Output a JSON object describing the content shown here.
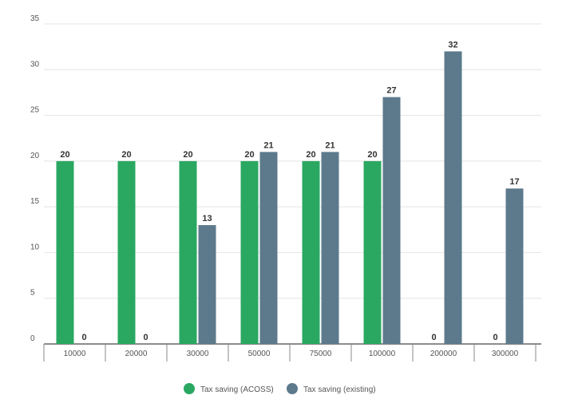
{
  "chart_data": {
    "type": "bar",
    "categories": [
      "10000",
      "20000",
      "30000",
      "50000",
      "75000",
      "100000",
      "200000",
      "300000"
    ],
    "series": [
      {
        "name": "Tax saving (ACOSS)",
        "values": [
          20,
          20,
          20,
          20,
          20,
          20,
          0,
          0
        ],
        "labels": [
          "20",
          "20",
          "20",
          "20",
          "20",
          "20",
          "0",
          "0"
        ],
        "color": "#2aa862"
      },
      {
        "name": "Tax saving (existing)",
        "values": [
          0,
          0,
          13,
          21,
          21,
          27,
          32,
          17
        ],
        "labels": [
          "0",
          "0",
          "13",
          "21",
          "21",
          "27",
          "32",
          "17"
        ],
        "color": "#5d7a8c"
      }
    ],
    "y_ticks": [
      0,
      5,
      10,
      15,
      20,
      25,
      30,
      35
    ],
    "y_tick_labels": [
      "0",
      "5",
      "10",
      "15",
      "20",
      "25",
      "30",
      "35"
    ],
    "ylim": [
      0,
      35
    ],
    "grid": true,
    "legend_position": "bottom-center",
    "title": "",
    "xlabel": "",
    "ylabel": ""
  }
}
